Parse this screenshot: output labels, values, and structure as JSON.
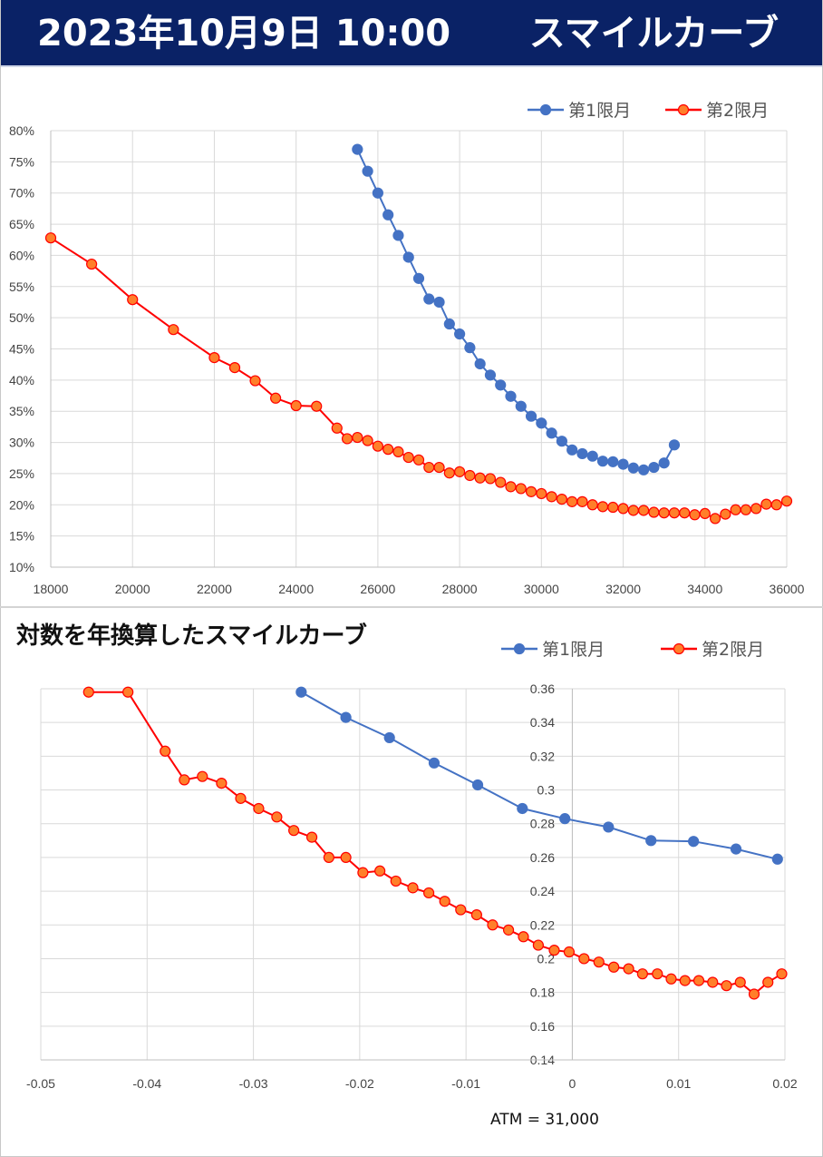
{
  "header": {
    "date_time": "2023年10月9日 10:00",
    "title": "スマイルカーブ"
  },
  "colors": {
    "header_bg": "#0a2266",
    "series1": "#4472c4",
    "series2_line": "#ff0000",
    "series2_marker": "#ff7f2a"
  },
  "chart_data": [
    {
      "type": "line",
      "legend_position": "top-right",
      "grid": true,
      "xlim": [
        18000,
        36000
      ],
      "ylim": [
        10,
        80
      ],
      "x_ticks": [
        "18000",
        "20000",
        "22000",
        "24000",
        "26000",
        "28000",
        "30000",
        "32000",
        "34000",
        "36000"
      ],
      "y_ticks": [
        "10%",
        "15%",
        "20%",
        "25%",
        "30%",
        "35%",
        "40%",
        "45%",
        "50%",
        "55%",
        "60%",
        "65%",
        "70%",
        "75%",
        "80%"
      ],
      "series": [
        {
          "name": "第1限月",
          "x": [
            25500,
            25750,
            26000,
            26250,
            26500,
            26750,
            27000,
            27250,
            27500,
            27750,
            28000,
            28250,
            28500,
            28750,
            29000,
            29250,
            29500,
            29750,
            30000,
            30250,
            30500,
            30750,
            31000,
            31250,
            31500,
            31750,
            32000,
            32250,
            32500,
            32750,
            33000,
            33250
          ],
          "y": [
            77.0,
            73.5,
            70.0,
            66.5,
            63.2,
            59.7,
            56.3,
            53.0,
            52.5,
            49.0,
            47.4,
            45.2,
            42.6,
            40.8,
            39.2,
            37.4,
            35.8,
            34.2,
            33.1,
            31.5,
            30.2,
            28.8,
            28.2,
            27.8,
            27.0,
            26.9,
            26.5,
            25.9,
            25.6,
            26.0,
            26.7,
            29.6
          ]
        },
        {
          "name": "第2限月",
          "x": [
            18000,
            19000,
            20000,
            21000,
            22000,
            22500,
            23000,
            23500,
            24000,
            24500,
            25000,
            25250,
            25500,
            25750,
            26000,
            26250,
            26500,
            26750,
            27000,
            27250,
            27500,
            27750,
            28000,
            28250,
            28500,
            28750,
            29000,
            29250,
            29500,
            29750,
            30000,
            30250,
            30500,
            30750,
            31000,
            31250,
            31500,
            31750,
            32000,
            32250,
            32500,
            32750,
            33000,
            33250,
            33500,
            33750,
            34000,
            34250,
            34500,
            34750,
            35000,
            35250,
            35500,
            35750,
            36000
          ],
          "y": [
            62.8,
            58.6,
            52.9,
            48.1,
            43.6,
            42.0,
            39.9,
            37.1,
            35.9,
            35.8,
            32.3,
            30.6,
            30.8,
            30.3,
            29.4,
            28.9,
            28.5,
            27.6,
            27.2,
            26.0,
            26.0,
            25.1,
            25.3,
            24.7,
            24.3,
            24.2,
            23.6,
            22.9,
            22.6,
            22.1,
            21.8,
            21.3,
            20.9,
            20.5,
            20.5,
            20.0,
            19.7,
            19.6,
            19.4,
            19.1,
            19.1,
            18.8,
            18.7,
            18.7,
            18.7,
            18.4,
            18.6,
            17.8,
            18.5,
            19.2,
            19.2,
            19.4,
            20.1,
            20.0,
            20.6
          ]
        }
      ]
    },
    {
      "type": "line",
      "title": "対数を年換算したスマイルカーブ",
      "legend_position": "top-right",
      "grid": true,
      "xlim": [
        -0.05,
        0.02
      ],
      "ylim": [
        0.14,
        0.36
      ],
      "x_ticks": [
        "-0.05",
        "-0.04",
        "-0.03",
        "-0.02",
        "-0.01",
        "0",
        "0.01",
        "0.02"
      ],
      "y_ticks": [
        "0.14",
        "0.16",
        "0.18",
        "0.2",
        "0.22",
        "0.24",
        "0.26",
        "0.28",
        "0.3",
        "0.32",
        "0.34",
        "0.36"
      ],
      "note": "ATM = 31,000",
      "series": [
        {
          "name": "第1限月",
          "x": [
            -0.0255,
            -0.0213,
            -0.0172,
            -0.013,
            -0.0089,
            -0.0047,
            -0.0007,
            0.0034,
            0.0074,
            0.0114,
            0.0154,
            0.0193
          ],
          "y": [
            0.358,
            0.343,
            0.331,
            0.316,
            0.303,
            0.289,
            0.283,
            0.278,
            0.27,
            0.2695,
            0.265,
            0.259
          ]
        },
        {
          "name": "第2限月",
          "x": [
            -0.0455,
            -0.0418,
            -0.0383,
            -0.0365,
            -0.0348,
            -0.033,
            -0.0312,
            -0.0295,
            -0.0278,
            -0.0262,
            -0.0245,
            -0.0229,
            -0.0213,
            -0.0197,
            -0.0181,
            -0.0166,
            -0.015,
            -0.0135,
            -0.012,
            -0.0105,
            -0.009,
            -0.0075,
            -0.006,
            -0.0046,
            -0.0032,
            -0.0017,
            -0.0003,
            0.0011,
            0.0025,
            0.0039,
            0.0053,
            0.0066,
            0.008,
            0.0093,
            0.0106,
            0.0119,
            0.0132,
            0.0145,
            0.0158,
            0.0171,
            0.0184,
            0.0197
          ],
          "y": [
            0.358,
            0.358,
            0.323,
            0.306,
            0.308,
            0.304,
            0.295,
            0.289,
            0.284,
            0.276,
            0.272,
            0.26,
            0.26,
            0.251,
            0.252,
            0.246,
            0.242,
            0.239,
            0.234,
            0.229,
            0.226,
            0.22,
            0.217,
            0.213,
            0.208,
            0.205,
            0.204,
            0.2,
            0.198,
            0.195,
            0.194,
            0.191,
            0.191,
            0.188,
            0.187,
            0.187,
            0.186,
            0.184,
            0.186,
            0.179,
            0.186,
            0.191
          ]
        }
      ]
    }
  ]
}
